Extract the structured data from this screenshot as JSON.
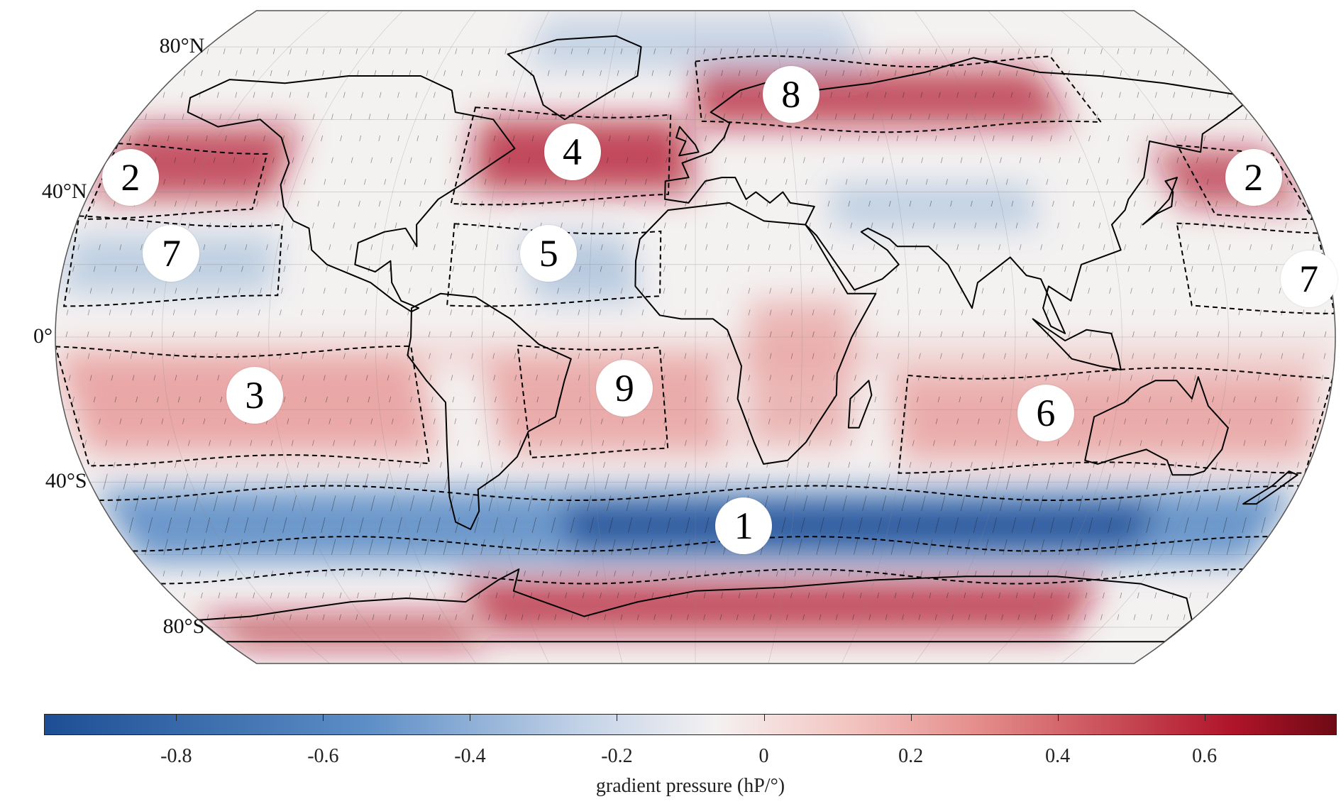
{
  "map": {
    "projection": "Robinson",
    "latitude_labels": [
      {
        "text": "80°N",
        "lat": 80
      },
      {
        "text": "40°N",
        "lat": 40
      },
      {
        "text": "0°",
        "lat": 0
      },
      {
        "text": "40°S",
        "lat": -40
      },
      {
        "text": "80°S",
        "lat": -80
      }
    ],
    "regions": [
      {
        "label": "1",
        "lon": 15,
        "lat": -52
      },
      {
        "label": "2",
        "lon": -170,
        "lat": 44
      },
      {
        "label": "2",
        "lon": 168,
        "lat": 44
      },
      {
        "label": "3",
        "lon": -125,
        "lat": -16
      },
      {
        "label": "4",
        "lon": -38,
        "lat": 51
      },
      {
        "label": "5",
        "lon": -42,
        "lat": 23
      },
      {
        "label": "6",
        "lon": 100,
        "lat": -21
      },
      {
        "label": "7",
        "lon": -150,
        "lat": 23
      },
      {
        "label": "7",
        "lon": 174,
        "lat": 16
      },
      {
        "label": "8",
        "lon": 32,
        "lat": 67
      },
      {
        "label": "9",
        "lon": -20,
        "lat": -14
      }
    ],
    "colors": {
      "strong_positive": "#b0142a",
      "positive": "#e58f8d",
      "neutral": "#f4f1f1",
      "negative": "#5d8ec6",
      "strong_negative": "#1d4e95",
      "coastline": "#000000",
      "contour": "#000000"
    }
  },
  "colorbar": {
    "title": "gradient pressure (hP/°)",
    "min": -0.98,
    "max": 0.78,
    "ticks": [
      "-0.8",
      "-0.6",
      "-0.4",
      "-0.2",
      "0",
      "0.2",
      "0.4",
      "0.6"
    ],
    "tick_values": [
      -0.8,
      -0.6,
      -0.4,
      -0.2,
      0,
      0.2,
      0.4,
      0.6
    ]
  }
}
